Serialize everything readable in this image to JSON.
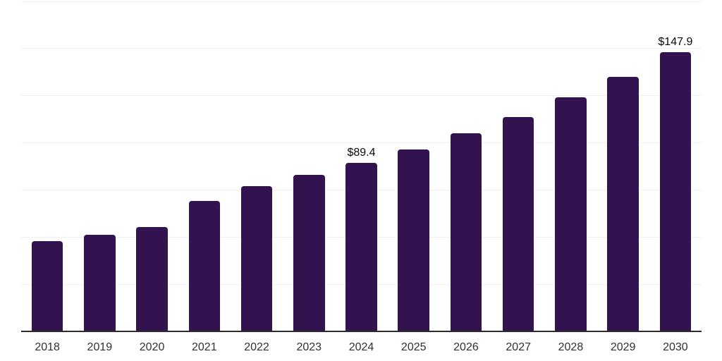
{
  "chart_data": {
    "type": "bar",
    "title": "",
    "xlabel": "",
    "ylabel": "",
    "categories": [
      "2018",
      "2019",
      "2020",
      "2021",
      "2022",
      "2023",
      "2024",
      "2025",
      "2026",
      "2027",
      "2028",
      "2029",
      "2030"
    ],
    "values": [
      47.9,
      51.3,
      55.2,
      69.2,
      77.2,
      82.9,
      89.4,
      96.6,
      105.1,
      113.8,
      124.3,
      135.0,
      147.9
    ],
    "data_labels": [
      "",
      "",
      "",
      "",
      "",
      "",
      "$89.4",
      "",
      "",
      "",
      "",
      "",
      "$147.9"
    ],
    "ylim": [
      0,
      175
    ],
    "gridline_values": [
      25,
      50,
      75,
      100,
      125,
      150,
      175
    ],
    "grid": "horizontal",
    "legend_position": "none",
    "y_axis_labels_visible": false,
    "colors": {
      "bar": "#32124F",
      "gridline": "#F1F1F1",
      "axis": "#2B2B2B",
      "tick_label": "#303030",
      "data_label": "#0A0A0A",
      "background": "#FFFFFF"
    }
  }
}
